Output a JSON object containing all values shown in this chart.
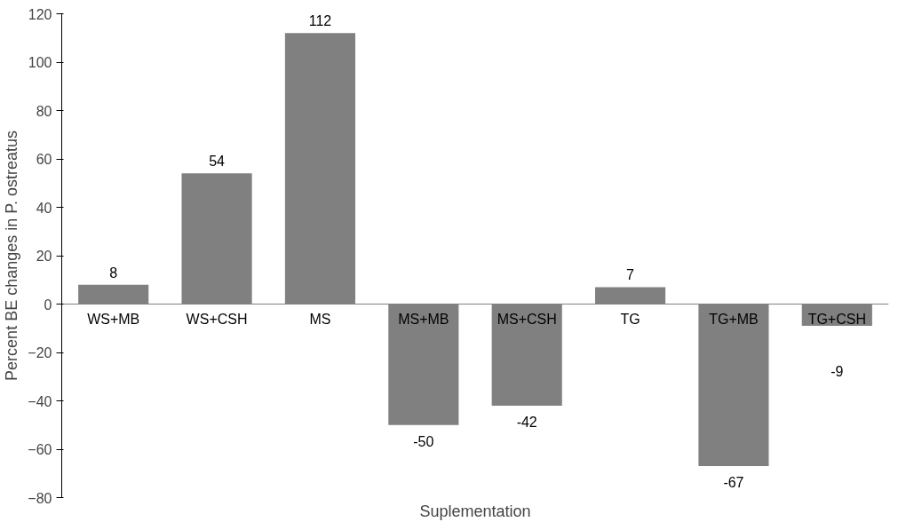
{
  "chart_data": {
    "type": "bar",
    "xlabel": "Suplementation",
    "ylabel": "Percent BE changes in P. ostreatus",
    "categories": [
      "WS+MB",
      "WS+CSH",
      "MS",
      "MS+MB",
      "MS+CSH",
      "TG",
      "TG+MB",
      "TG+CSH"
    ],
    "values": [
      8,
      54,
      112,
      -50,
      -42,
      7,
      -67,
      -9
    ],
    "color": "#808080",
    "ylim": [
      -80,
      120
    ],
    "yticks": [
      -80,
      -60,
      -40,
      -20,
      0,
      20,
      40,
      60,
      80,
      100,
      120
    ],
    "grid": false,
    "data_labels": true
  }
}
